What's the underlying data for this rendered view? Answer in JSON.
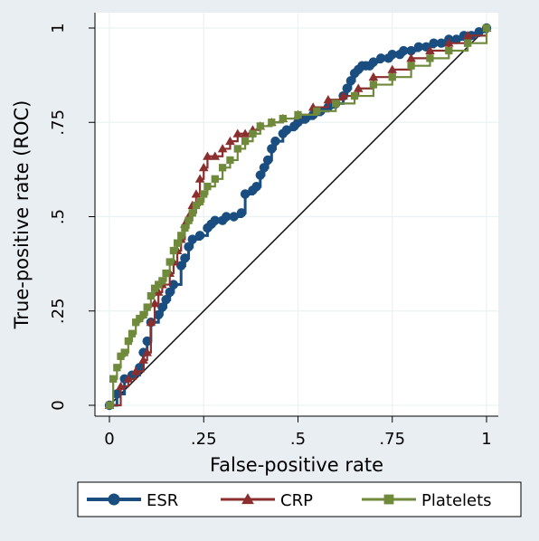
{
  "chart_data": {
    "type": "line",
    "title": "",
    "xlabel": "False-positive rate",
    "ylabel": "True-positive rate (ROC)",
    "xlim": [
      0,
      1
    ],
    "ylim": [
      0,
      1
    ],
    "grid": true,
    "x_ticks": [
      {
        "value": 0,
        "label": "0"
      },
      {
        "value": 0.25,
        "label": ".25"
      },
      {
        "value": 0.5,
        "label": ".5"
      },
      {
        "value": 0.75,
        "label": ".75"
      },
      {
        "value": 1,
        "label": "1"
      }
    ],
    "y_ticks": [
      {
        "value": 0,
        "label": "0"
      },
      {
        "value": 0.25,
        "label": ".25"
      },
      {
        "value": 0.5,
        "label": ".5"
      },
      {
        "value": 0.75,
        "label": ".75"
      },
      {
        "value": 1,
        "label": "1"
      }
    ],
    "legend_position": "bottom",
    "reference_line": {
      "x": [
        0,
        1
      ],
      "y": [
        0,
        1
      ],
      "color": "#000000"
    },
    "series": [
      {
        "name": "ESR",
        "color": "#1a4e80",
        "marker": "circle",
        "x": [
          0,
          0.02,
          0.04,
          0.06,
          0.08,
          0.09,
          0.1,
          0.11,
          0.13,
          0.14,
          0.15,
          0.16,
          0.17,
          0.19,
          0.2,
          0.21,
          0.22,
          0.24,
          0.26,
          0.27,
          0.28,
          0.3,
          0.31,
          0.33,
          0.35,
          0.36,
          0.38,
          0.39,
          0.4,
          0.41,
          0.42,
          0.43,
          0.44,
          0.46,
          0.47,
          0.49,
          0.5,
          0.52,
          0.54,
          0.56,
          0.58,
          0.6,
          0.62,
          0.63,
          0.64,
          0.65,
          0.66,
          0.67,
          0.68,
          0.69,
          0.7,
          0.72,
          0.74,
          0.75,
          0.77,
          0.78,
          0.8,
          0.82,
          0.84,
          0.86,
          0.88,
          0.9,
          0.92,
          0.94,
          0.96,
          0.98,
          1
        ],
        "y": [
          0,
          0.03,
          0.07,
          0.08,
          0.1,
          0.14,
          0.17,
          0.22,
          0.24,
          0.26,
          0.28,
          0.3,
          0.32,
          0.37,
          0.39,
          0.42,
          0.44,
          0.45,
          0.47,
          0.48,
          0.49,
          0.49,
          0.5,
          0.5,
          0.51,
          0.56,
          0.57,
          0.58,
          0.61,
          0.63,
          0.65,
          0.68,
          0.7,
          0.72,
          0.73,
          0.74,
          0.75,
          0.76,
          0.77,
          0.78,
          0.79,
          0.8,
          0.82,
          0.84,
          0.86,
          0.88,
          0.89,
          0.9,
          0.9,
          0.9,
          0.91,
          0.92,
          0.92,
          0.93,
          0.93,
          0.94,
          0.94,
          0.95,
          0.95,
          0.96,
          0.96,
          0.97,
          0.97,
          0.98,
          0.98,
          0.99,
          1
        ]
      },
      {
        "name": "CRP",
        "color": "#8b2e2e",
        "marker": "triangle",
        "x": [
          0,
          0.03,
          0.05,
          0.07,
          0.09,
          0.1,
          0.11,
          0.12,
          0.13,
          0.14,
          0.16,
          0.17,
          0.18,
          0.19,
          0.2,
          0.21,
          0.22,
          0.23,
          0.24,
          0.25,
          0.26,
          0.28,
          0.3,
          0.32,
          0.34,
          0.36,
          0.38,
          0.4,
          0.43,
          0.46,
          0.5,
          0.54,
          0.58,
          0.62,
          0.66,
          0.7,
          0.75,
          0.8,
          0.85,
          0.9,
          0.95,
          1
        ],
        "y": [
          0,
          0.05,
          0.07,
          0.09,
          0.12,
          0.14,
          0.22,
          0.27,
          0.3,
          0.32,
          0.35,
          0.38,
          0.41,
          0.44,
          0.48,
          0.5,
          0.53,
          0.56,
          0.6,
          0.63,
          0.66,
          0.66,
          0.68,
          0.7,
          0.72,
          0.72,
          0.73,
          0.74,
          0.75,
          0.76,
          0.77,
          0.79,
          0.81,
          0.82,
          0.84,
          0.87,
          0.89,
          0.92,
          0.94,
          0.96,
          0.98,
          1
        ]
      },
      {
        "name": "Platelets",
        "color": "#6f8a3a",
        "marker": "square",
        "x": [
          0,
          0.01,
          0.02,
          0.03,
          0.04,
          0.05,
          0.06,
          0.07,
          0.08,
          0.09,
          0.1,
          0.11,
          0.12,
          0.13,
          0.14,
          0.15,
          0.16,
          0.17,
          0.18,
          0.19,
          0.2,
          0.21,
          0.22,
          0.23,
          0.24,
          0.25,
          0.26,
          0.28,
          0.3,
          0.32,
          0.34,
          0.36,
          0.38,
          0.4,
          0.43,
          0.46,
          0.5,
          0.55,
          0.6,
          0.65,
          0.7,
          0.75,
          0.8,
          0.85,
          0.9,
          0.95,
          1
        ],
        "y": [
          0,
          0.07,
          0.1,
          0.13,
          0.14,
          0.17,
          0.19,
          0.22,
          0.23,
          0.24,
          0.26,
          0.29,
          0.31,
          0.32,
          0.33,
          0.35,
          0.38,
          0.41,
          0.43,
          0.45,
          0.47,
          0.49,
          0.51,
          0.53,
          0.54,
          0.56,
          0.58,
          0.6,
          0.63,
          0.65,
          0.68,
          0.7,
          0.72,
          0.74,
          0.75,
          0.76,
          0.77,
          0.78,
          0.8,
          0.82,
          0.85,
          0.87,
          0.9,
          0.92,
          0.94,
          0.96,
          1
        ]
      }
    ]
  }
}
